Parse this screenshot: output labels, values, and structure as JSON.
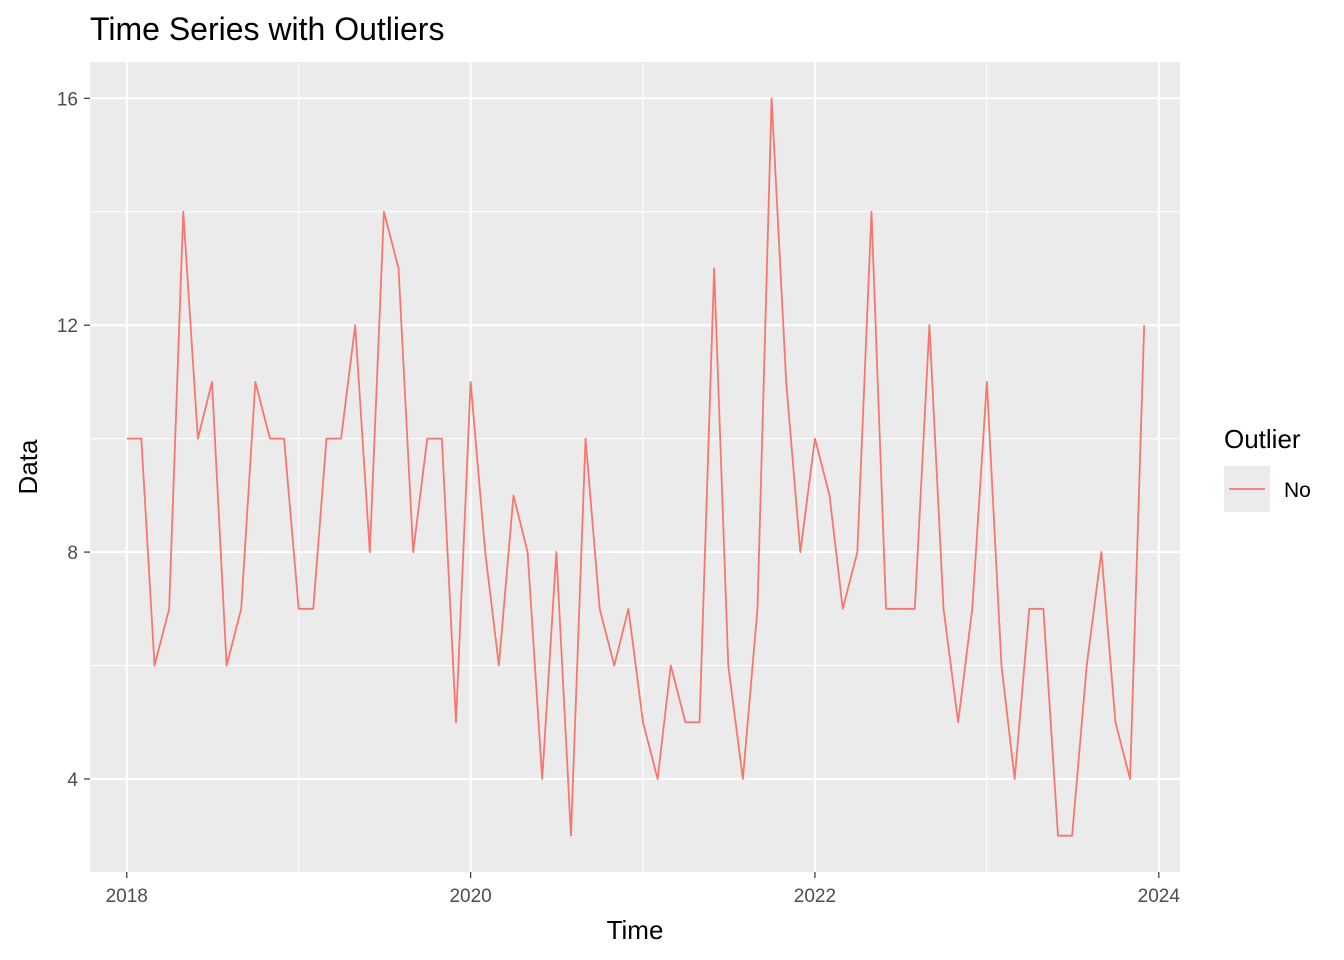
{
  "chart_data": {
    "type": "line",
    "title": "Time Series with Outliers",
    "xlabel": "Time",
    "ylabel": "Data",
    "x_ticks": [
      "2018",
      "2020",
      "2022",
      "2024"
    ],
    "y_ticks": [
      4,
      8,
      12,
      16
    ],
    "xlim": [
      "2017-10-15",
      "2024-02-15"
    ],
    "ylim": [
      2.36,
      16.64
    ],
    "grid": true,
    "legend": {
      "title": "Outlier",
      "position": "right"
    },
    "series": [
      {
        "name": "No",
        "color": "#F8766D",
        "x": [
          "2018-01-01",
          "2018-02-01",
          "2018-03-01",
          "2018-04-01",
          "2018-05-01",
          "2018-06-01",
          "2018-07-01",
          "2018-08-01",
          "2018-09-01",
          "2018-10-01",
          "2018-11-01",
          "2018-12-01",
          "2019-01-01",
          "2019-02-01",
          "2019-03-01",
          "2019-04-01",
          "2019-05-01",
          "2019-06-01",
          "2019-07-01",
          "2019-08-01",
          "2019-09-01",
          "2019-10-01",
          "2019-11-01",
          "2019-12-01",
          "2020-01-01",
          "2020-02-01",
          "2020-03-01",
          "2020-04-01",
          "2020-05-01",
          "2020-06-01",
          "2020-07-01",
          "2020-08-01",
          "2020-09-01",
          "2020-10-01",
          "2020-11-01",
          "2020-12-01",
          "2021-01-01",
          "2021-02-01",
          "2021-03-01",
          "2021-04-01",
          "2021-05-01",
          "2021-06-01",
          "2021-07-01",
          "2021-08-01",
          "2021-09-01",
          "2021-10-01",
          "2021-11-01",
          "2021-12-01",
          "2022-01-01",
          "2022-02-01",
          "2022-03-01",
          "2022-04-01",
          "2022-05-01",
          "2022-06-01",
          "2022-07-01",
          "2022-08-01",
          "2022-09-01",
          "2022-10-01",
          "2022-11-01",
          "2022-12-01",
          "2023-01-01",
          "2023-02-01",
          "2023-03-01",
          "2023-04-01",
          "2023-05-01",
          "2023-06-01",
          "2023-07-01",
          "2023-08-01",
          "2023-09-01",
          "2023-10-01",
          "2023-11-01",
          "2023-12-01"
        ],
        "values": [
          10,
          10,
          6,
          7,
          14,
          10,
          11,
          6,
          7,
          11,
          10,
          10,
          7,
          7,
          10,
          10,
          12,
          8,
          14,
          13,
          8,
          10,
          10,
          5,
          11,
          8,
          6,
          9,
          8,
          4,
          8,
          3,
          10,
          7,
          6,
          7,
          5,
          4,
          6,
          5,
          5,
          13,
          6,
          4,
          7,
          16,
          11,
          8,
          10,
          9,
          7,
          8,
          14,
          7,
          7,
          7,
          12,
          7,
          5,
          7,
          11,
          6,
          4,
          7,
          7,
          3,
          3,
          6,
          8,
          5,
          4,
          12
        ]
      }
    ]
  }
}
